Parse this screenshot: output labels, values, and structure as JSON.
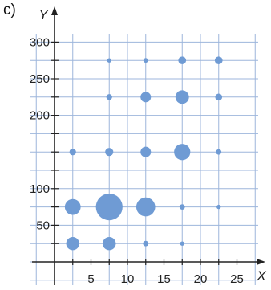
{
  "label": "c)",
  "chart_data": {
    "type": "scatter",
    "title": "",
    "xlabel": "X",
    "ylabel": "Y",
    "xlim": [
      0,
      28
    ],
    "ylim": [
      -15,
      325
    ],
    "x_ticks": [
      5,
      10,
      15,
      20,
      25
    ],
    "y_ticks": [
      50,
      100,
      200,
      250,
      300
    ],
    "grid": true,
    "point_color": "#6f9bd4",
    "grid_color": "#9db6dc",
    "axis_color": "#222222",
    "points": [
      {
        "x": 2.5,
        "y": 25,
        "size": 2.5
      },
      {
        "x": 7.5,
        "y": 25,
        "size": 2.5
      },
      {
        "x": 12.5,
        "y": 25,
        "size": 0.5
      },
      {
        "x": 17.5,
        "y": 25,
        "size": 0.2
      },
      {
        "x": 2.5,
        "y": 75,
        "size": 3.2
      },
      {
        "x": 7.5,
        "y": 75,
        "size": 6
      },
      {
        "x": 12.5,
        "y": 75,
        "size": 4
      },
      {
        "x": 17.5,
        "y": 75,
        "size": 0.5
      },
      {
        "x": 22.5,
        "y": 75,
        "size": 0.2
      },
      {
        "x": 2.5,
        "y": 150,
        "size": 0.8
      },
      {
        "x": 7.5,
        "y": 150,
        "size": 1.2
      },
      {
        "x": 12.5,
        "y": 150,
        "size": 1.8
      },
      {
        "x": 17.5,
        "y": 150,
        "size": 3.3
      },
      {
        "x": 22.5,
        "y": 150,
        "size": 0.5
      },
      {
        "x": 7.5,
        "y": 225,
        "size": 0.6
      },
      {
        "x": 12.5,
        "y": 225,
        "size": 1.8
      },
      {
        "x": 17.5,
        "y": 225,
        "size": 2.6
      },
      {
        "x": 22.5,
        "y": 225,
        "size": 0.9
      },
      {
        "x": 7.5,
        "y": 275,
        "size": 0.2
      },
      {
        "x": 12.5,
        "y": 275,
        "size": 0.3
      },
      {
        "x": 17.5,
        "y": 275,
        "size": 1.1
      },
      {
        "x": 22.5,
        "y": 275,
        "size": 1.1
      }
    ]
  }
}
